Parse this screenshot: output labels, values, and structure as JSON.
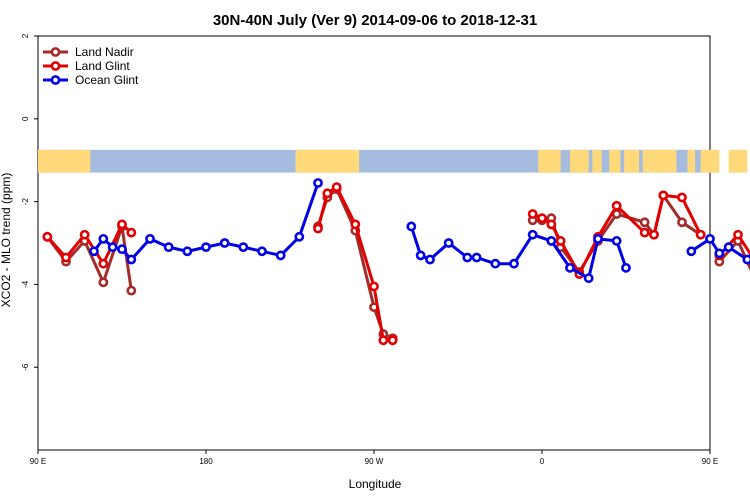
{
  "chart_data": {
    "type": "line",
    "title": "30N-40N July (Ver 9)   2014-09-06 to 2018-12-31",
    "xlabel": "Longitude",
    "ylabel": "XCO2 - MLO trend (ppm)",
    "xlim": [
      90,
      450
    ],
    "ylim": [
      -8,
      2
    ],
    "x_ticks": [
      {
        "value": 90,
        "label": "90 E"
      },
      {
        "value": 180,
        "label": "180"
      },
      {
        "value": 270,
        "label": "90 W"
      },
      {
        "value": 360,
        "label": "0"
      },
      {
        "value": 450,
        "label": "90 E"
      },
      {
        "value": 540,
        "label": "180"
      }
    ],
    "y_ticks": [
      {
        "value": 2,
        "label": "2"
      },
      {
        "value": 0,
        "label": "0"
      },
      {
        "value": -2,
        "label": "-2"
      },
      {
        "value": -4,
        "label": "-4"
      },
      {
        "value": -6,
        "label": "-6"
      }
    ],
    "legend_position": "top-left",
    "land_ocean_strip": {
      "y_top": -0.75,
      "y_bottom": -1.3,
      "land_color": "#ffd97a",
      "ocean_color": "#a6bcdf"
    },
    "series": [
      {
        "name": "Land Nadir",
        "color": "#a52a2a",
        "x": [
          -85,
          -80,
          -75,
          -70,
          -65,
          -60
        ],
        "y": [
          -2.8,
          -3.4,
          -2.9,
          -3.9,
          -2.6,
          -4.1
        ],
        "segments": [
          {
            "x": [
              95,
              105,
              115,
              125,
              135,
              140
            ],
            "y": [
              -2.85,
              -3.45,
              -2.95,
              -3.95,
              -2.6,
              -4.15
            ]
          },
          {
            "x": [
              240,
              245,
              250,
              260,
              270,
              275,
              280
            ],
            "y": [
              -2.6,
              -1.9,
              -1.7,
              -2.7,
              -4.55,
              -5.2,
              -5.3
            ]
          },
          {
            "x": [
              355,
              360,
              365,
              370,
              380,
              390,
              400,
              415,
              420,
              425,
              435,
              445
            ],
            "y": [
              -2.45,
              -2.45,
              -2.4,
              -3.1,
              -3.7,
              -2.95,
              -2.3,
              -2.5,
              -2.8,
              -1.85,
              -2.5,
              -2.8
            ]
          },
          {
            "x": [
              455,
              465,
              475,
              480,
              485,
              490
            ],
            "y": [
              -3.45,
              -2.95,
              -3.95,
              -2.6,
              -4.15,
              -2.75
            ]
          }
        ]
      },
      {
        "name": "Land Glint",
        "color": "#e30000",
        "segments": [
          {
            "x": [
              95,
              105,
              115,
              125,
              135,
              140
            ],
            "y": [
              -2.85,
              -3.35,
              -2.8,
              -3.5,
              -2.55,
              -2.75
            ]
          },
          {
            "x": [
              240,
              245,
              250,
              260,
              270,
              275,
              280
            ],
            "y": [
              -2.65,
              -1.8,
              -1.65,
              -2.55,
              -4.05,
              -5.35,
              -5.35
            ]
          },
          {
            "x": [
              355,
              360,
              365,
              370,
              380,
              390,
              400,
              415,
              420,
              425,
              435,
              445
            ],
            "y": [
              -2.3,
              -2.4,
              -2.55,
              -2.95,
              -3.75,
              -2.85,
              -2.1,
              -2.75,
              -2.8,
              -1.85,
              -1.9,
              -2.8
            ]
          },
          {
            "x": [
              455,
              465,
              475,
              480,
              485,
              490
            ],
            "y": [
              -3.3,
              -2.8,
              -3.5,
              -2.55,
              -2.75,
              -2.75
            ]
          }
        ]
      },
      {
        "name": "Ocean Glint",
        "color": "#0000e6",
        "segments": [
          {
            "x": [
              120,
              125,
              130,
              135,
              140,
              150,
              160,
              170,
              180,
              190,
              200,
              210,
              220,
              230,
              240
            ],
            "y": [
              -3.2,
              -2.9,
              -3.1,
              -3.15,
              -3.4,
              -2.9,
              -3.1,
              -3.2,
              -3.1,
              -3.0,
              -3.1,
              -3.2,
              -3.3,
              -2.85,
              -1.55
            ]
          },
          {
            "x": [
              290,
              295,
              300,
              310,
              320,
              325,
              335,
              345,
              355,
              365,
              375,
              385,
              390,
              400,
              405
            ],
            "y": [
              -2.6,
              -3.3,
              -3.4,
              -3.0,
              -3.35,
              -3.35,
              -3.5,
              -3.5,
              -2.8,
              -2.95,
              -3.6,
              -3.85,
              -2.9,
              -2.95,
              -3.6
            ]
          },
          {
            "x": [
              440,
              450,
              455,
              460,
              470,
              480,
              490,
              500,
              510,
              520,
              530
            ],
            "y": [
              -3.2,
              -2.9,
              -3.25,
              -3.1,
              -3.4,
              -2.85,
              -3.1,
              -3.15,
              -3.3,
              -2.9,
              -3.1
            ]
          }
        ]
      }
    ]
  }
}
